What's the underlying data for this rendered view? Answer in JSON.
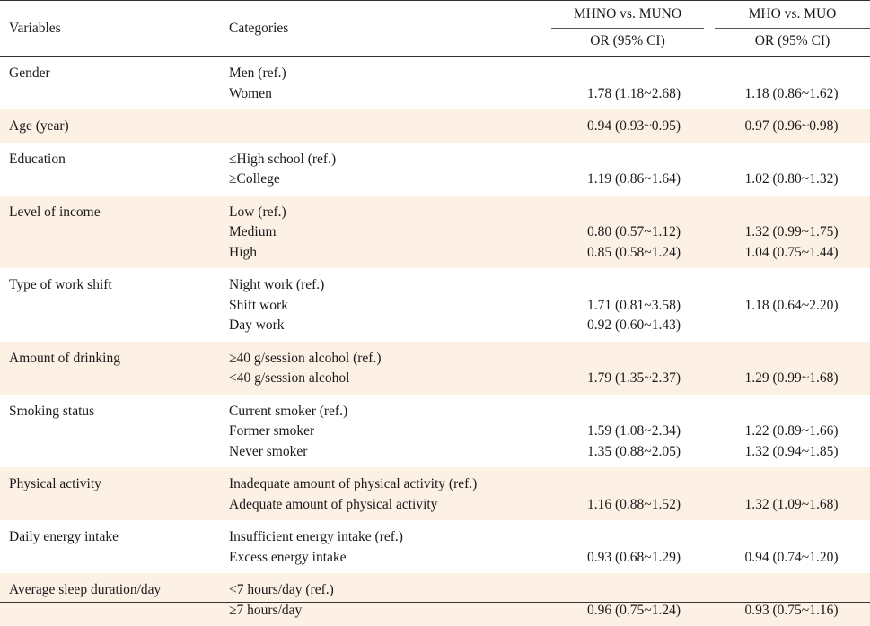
{
  "table": {
    "header": {
      "variables": "Variables",
      "categories": "Categories",
      "group1": "MHNO vs. MUNO",
      "group2": "MHO vs. MUO",
      "or1": "OR (95% CI)",
      "or2": "OR (95% CI)"
    },
    "rows": [
      {
        "variable": "Gender",
        "categories": [
          " Men (ref.)",
          "Women"
        ],
        "or1": [
          "",
          "1.78 (1.18~2.68)"
        ],
        "or2": [
          "",
          "1.18 (0.86~1.62)"
        ]
      },
      {
        "variable": "Age (year)",
        "categories": [
          ""
        ],
        "or1": [
          "0.94 (0.93~0.95)"
        ],
        "or2": [
          "0.97 (0.96~0.98)"
        ]
      },
      {
        "variable": "Education",
        "categories": [
          "≤High school (ref.)",
          "≥College"
        ],
        "or1": [
          "",
          "1.19 (0.86~1.64)"
        ],
        "or2": [
          "",
          "1.02 (0.80~1.32)"
        ]
      },
      {
        "variable": "Level of income",
        "categories": [
          "Low (ref.)",
          "Medium",
          "High"
        ],
        "or1": [
          "",
          "0.80 (0.57~1.12)",
          "0.85 (0.58~1.24)"
        ],
        "or2": [
          "",
          "1.32 (0.99~1.75)",
          "1.04 (0.75~1.44)"
        ]
      },
      {
        "variable": "Type of work shift",
        "categories": [
          "Night work (ref.)",
          "Shift work",
          "Day work"
        ],
        "or1": [
          "",
          "1.71 (0.81~3.58)",
          "0.92 (0.60~1.43)"
        ],
        "or2": [
          "",
          "1.18 (0.64~2.20)",
          ""
        ]
      },
      {
        "variable": "Amount of drinking",
        "categories": [
          "≥40 g/session alcohol (ref.)",
          "<40 g/session alcohol"
        ],
        "or1": [
          "",
          "1.79 (1.35~2.37)"
        ],
        "or2": [
          "",
          "1.29 (0.99~1.68)"
        ]
      },
      {
        "variable": "Smoking status",
        "categories": [
          "Current smoker (ref.)",
          "Former smoker",
          "Never smoker"
        ],
        "or1": [
          "",
          "1.59 (1.08~2.34)",
          "1.35 (0.88~2.05)"
        ],
        "or2": [
          "",
          "1.22 (0.89~1.66)",
          "1.32 (0.94~1.85)"
        ]
      },
      {
        "variable": "Physical activity",
        "categories": [
          "Inadequate amount of physical activity (ref.)",
          "Adequate amount of physical activity"
        ],
        "or1": [
          "",
          "1.16 (0.88~1.52)"
        ],
        "or2": [
          "",
          "1.32 (1.09~1.68)"
        ]
      },
      {
        "variable": "Daily energy intake",
        "categories": [
          "Insufficient energy intake (ref.)",
          "Excess energy intake"
        ],
        "or1": [
          "",
          "0.93 (0.68~1.29)"
        ],
        "or2": [
          "",
          "0.94 (0.74~1.20)"
        ]
      },
      {
        "variable": "Average sleep duration/day",
        "categories": [
          "<7 hours/day (ref.)",
          "≥7 hours/day"
        ],
        "or1": [
          "",
          "0.96 (0.75~1.24)"
        ],
        "or2": [
          "",
          "0.93 (0.75~1.16)"
        ]
      }
    ]
  }
}
